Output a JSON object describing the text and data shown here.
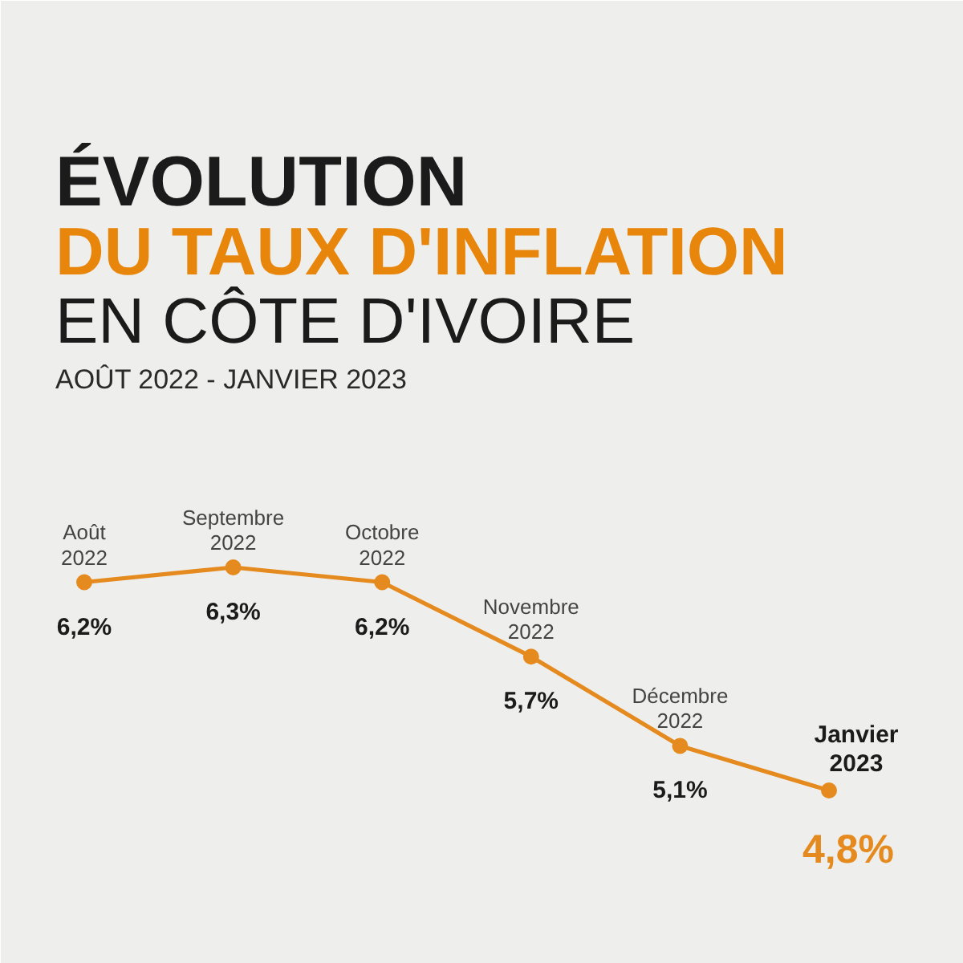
{
  "chart_data": {
    "type": "line",
    "title": "ÉVOLUTION\nDU TAUX D'INFLATION\nEN CÔTE D'IVOIRE",
    "subtitle": "AOÛT 2022 - JANVIER 2023",
    "categories": [
      "Août\n2022",
      "Septembre\n2022",
      "Octobre\n2022",
      "Novembre\n2022",
      "Décembre\n2022",
      "Janvier\n2023"
    ],
    "series": [
      {
        "color": "#e58a1e",
        "values": [
          6.2,
          6.3,
          6.2,
          5.7,
          5.1,
          4.8
        ],
        "value_labels": [
          "6,2%",
          "6,3%",
          "6,2%",
          "5,7%",
          "5,1%",
          "4,8%"
        ]
      }
    ],
    "marker": "circle",
    "line_style": "solid",
    "grid": false,
    "tick_labels": false
  }
}
